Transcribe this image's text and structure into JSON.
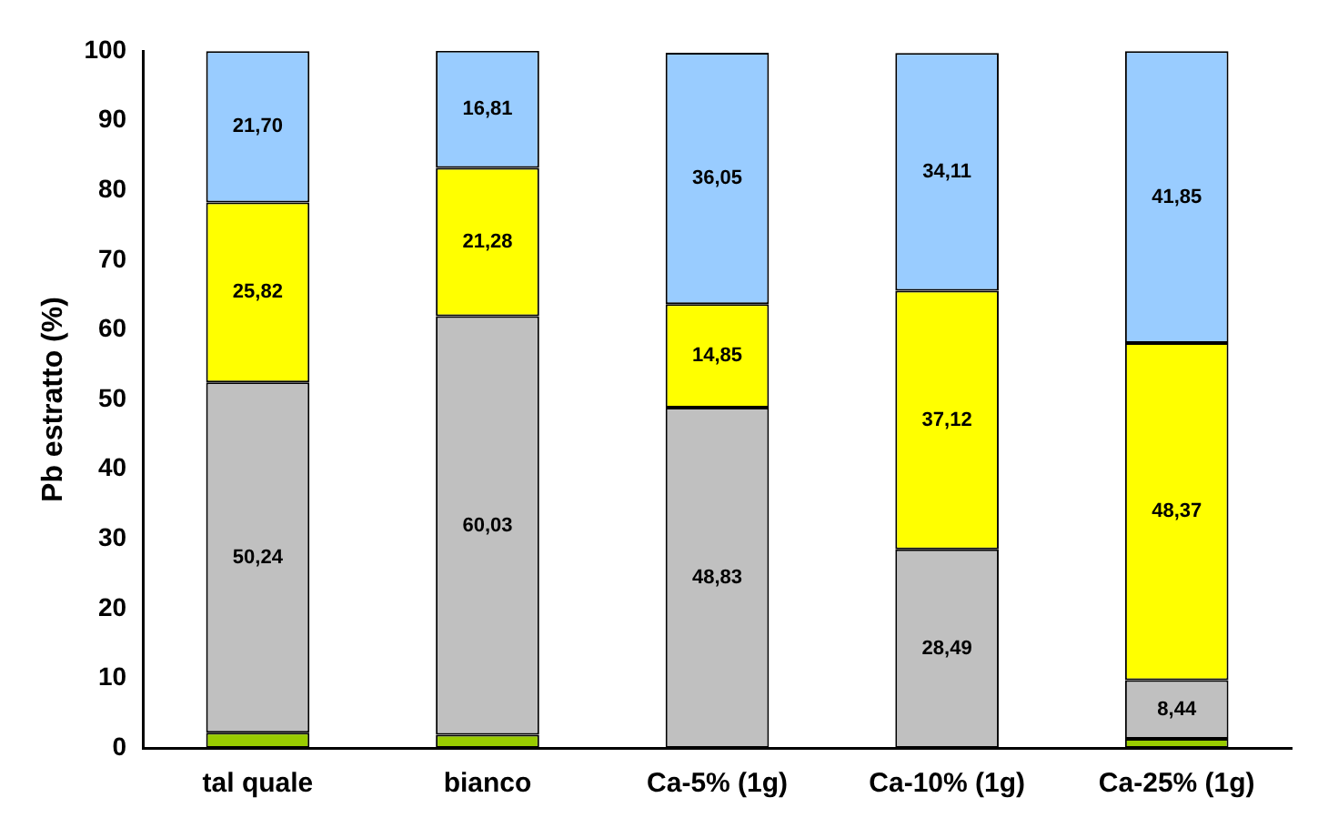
{
  "chart_data": {
    "type": "bar",
    "ylabel": "Pb estratto (%)",
    "stacked": true,
    "categories": [
      "tal quale",
      "bianco",
      "Ca-5% (1g)",
      "Ca-10% (1g)",
      "Ca-25% (1g)"
    ],
    "series": [
      {
        "color": "#99cc00",
        "values": [
          2.2,
          1.9,
          null,
          null,
          1.3
        ]
      },
      {
        "color": "#c0c0c0",
        "values": [
          50.24,
          60.03,
          48.83,
          28.49,
          8.44
        ],
        "value_labels": [
          "50,24",
          "60,03",
          "48,83",
          "28,49",
          "8,44"
        ]
      },
      {
        "color": "#ffff00",
        "values": [
          25.82,
          21.28,
          14.85,
          37.12,
          48.37
        ],
        "value_labels": [
          "25,82",
          "21,28",
          "14,85",
          "37,12",
          "48,37"
        ]
      },
      {
        "color": "#99ccff",
        "values": [
          21.7,
          16.81,
          36.05,
          34.11,
          41.85
        ],
        "value_labels": [
          "21,70",
          "16,81",
          "36,05",
          "34,11",
          "41,85"
        ]
      }
    ],
    "ylim": [
      0,
      100
    ],
    "yticks": [
      0,
      10,
      20,
      30,
      40,
      50,
      60,
      70,
      80,
      90,
      100
    ],
    "grid": false,
    "legend": false
  }
}
